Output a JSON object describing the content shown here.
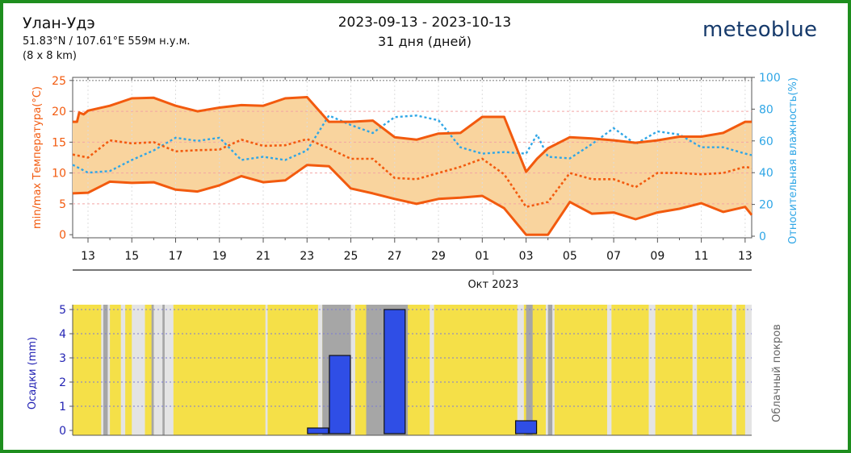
{
  "header": {
    "location": "Улан-Удэ",
    "coords": "51.83°N / 107.61°E   559м н.у.м.",
    "grid": "(8 x 8 km)",
    "date_range": "2023-09-13 - 2023-10-13",
    "days": "31 дня (дней)",
    "brand": "meteoblue"
  },
  "colors": {
    "temperature": "#f25a0e",
    "band": "#f9d49e",
    "humidity": "#2fa6e6",
    "precip": "#2f4ee6",
    "precip_axis": "#2424b4",
    "sun": "#f5e048",
    "cloud_light": "#e4e4e4",
    "cloud_dark": "#a6a6a6",
    "frame": "#1e8e1e"
  },
  "chart_data": [
    {
      "type": "area",
      "ylabel": "min/max Температура(°C)",
      "y2label": "Относительная влажность(%)",
      "xlabel": "Окт 2023",
      "ylim": [
        -0.5,
        25.5
      ],
      "y2lim": [
        -1,
        100
      ],
      "y_ticks": [
        "0",
        "5",
        "10",
        "15",
        "20",
        "25"
      ],
      "y2_ticks": [
        "0",
        "20",
        "40",
        "60",
        "80",
        "100"
      ],
      "x_range": [
        12.3,
        43.3
      ],
      "x_tick_days": [
        13,
        15,
        17,
        19,
        21,
        23,
        25,
        27,
        29,
        31,
        33,
        35,
        37,
        39,
        41,
        43
      ],
      "x_ticks": [
        "13",
        "15",
        "17",
        "19",
        "21",
        "23",
        "25",
        "27",
        "29",
        "01",
        "03",
        "05",
        "07",
        "09",
        "11",
        "13"
      ],
      "grid": true,
      "series": [
        {
          "name": "max",
          "x": [
            12.3,
            12.5,
            12.6,
            12.8,
            13,
            14,
            15,
            16,
            17,
            18,
            19,
            20,
            21,
            22,
            23,
            24,
            25,
            26,
            27,
            28,
            29,
            30,
            31,
            32,
            33,
            33.5,
            34,
            35,
            36,
            37,
            38,
            39,
            40,
            41,
            42,
            43,
            43.3
          ],
          "values": [
            18.3,
            18.3,
            19.8,
            19.5,
            20.1,
            20.9,
            22.1,
            22.2,
            20.9,
            20.0,
            20.6,
            21.0,
            20.9,
            22.1,
            22.3,
            18.3,
            18.3,
            18.5,
            15.8,
            15.4,
            16.4,
            16.5,
            19.1,
            19.1,
            10.2,
            12.3,
            14.0,
            15.8,
            15.6,
            15.3,
            14.9,
            15.3,
            15.9,
            15.9,
            16.5,
            18.3,
            18.3
          ]
        },
        {
          "name": "min",
          "x": [
            12.3,
            13,
            14,
            15,
            16,
            17,
            18,
            19,
            20,
            21,
            22,
            23,
            24,
            25,
            26,
            27,
            28,
            29,
            30,
            31,
            32,
            33,
            34,
            35,
            36,
            37,
            38,
            39,
            40,
            41,
            42,
            43,
            43.3
          ],
          "values": [
            6.7,
            6.8,
            8.6,
            8.4,
            8.5,
            7.3,
            7.0,
            8.0,
            9.5,
            8.5,
            8.8,
            11.3,
            11.1,
            7.5,
            6.7,
            5.8,
            5.0,
            5.8,
            6.0,
            6.3,
            4.3,
            0.0,
            0.0,
            5.3,
            3.4,
            3.6,
            2.5,
            3.6,
            4.2,
            5.1,
            3.7,
            4.5,
            3.2
          ]
        },
        {
          "name": "mean",
          "x": [
            12.3,
            13,
            14,
            15,
            16,
            17,
            18,
            19,
            20,
            21,
            22,
            23,
            24,
            25,
            26,
            27,
            28,
            29,
            30,
            31,
            32,
            33,
            34,
            35,
            36,
            37,
            38,
            39,
            40,
            41,
            42,
            43,
            43.3
          ],
          "values": [
            13.0,
            12.5,
            15.3,
            14.8,
            15.0,
            13.5,
            13.7,
            13.8,
            15.4,
            14.4,
            14.5,
            15.5,
            14.0,
            12.3,
            12.3,
            9.2,
            9.0,
            10.0,
            11.0,
            12.3,
            9.8,
            4.5,
            5.3,
            10.0,
            9.0,
            9.0,
            7.7,
            10.0,
            10.0,
            9.8,
            10.0,
            11.0,
            10.8
          ]
        },
        {
          "name": "humidity",
          "x": [
            12.3,
            13,
            14,
            15,
            16,
            17,
            18,
            19,
            20,
            21,
            22,
            23,
            24,
            25,
            26,
            27,
            28,
            29,
            30,
            31,
            32,
            33,
            33.5,
            34,
            35,
            36,
            37,
            38,
            39,
            40,
            41,
            42,
            43,
            43.3
          ],
          "values": [
            45,
            40,
            41,
            48,
            54,
            62,
            60,
            62,
            48,
            50,
            48,
            54,
            76,
            70,
            65,
            75,
            76,
            73,
            56,
            52,
            53,
            52,
            64,
            50,
            49,
            58,
            68,
            58,
            66,
            64,
            56,
            56,
            52,
            51
          ]
        }
      ]
    },
    {
      "type": "bar",
      "ylabel": "Осадки (mm)",
      "y2label": "Облачный покров",
      "ylim": [
        -0.2,
        5.2
      ],
      "y_ticks": [
        "0",
        "1",
        "2",
        "3",
        "4",
        "5"
      ],
      "x_range": [
        12.3,
        43.3
      ],
      "grid": true,
      "bars": {
        "x": [
          23.5,
          24.5,
          27.0,
          33.0
        ],
        "values": [
          0.1,
          3.1,
          5.0,
          0.4
        ]
      },
      "cloud_light": [
        [
          13.6,
          14.0
        ],
        [
          14.5,
          14.7
        ],
        [
          15.0,
          15.6
        ],
        [
          16.0,
          16.9
        ],
        [
          21.1,
          21.2
        ],
        [
          23.5,
          23.7
        ],
        [
          25.0,
          25.2
        ],
        [
          27.0,
          27.3
        ],
        [
          28.6,
          28.8
        ],
        [
          32.6,
          32.9
        ],
        [
          33.9,
          34.3
        ],
        [
          36.7,
          36.9
        ],
        [
          38.6,
          38.9
        ],
        [
          40.6,
          40.8
        ],
        [
          42.4,
          42.6
        ],
        [
          43.0,
          43.3
        ]
      ],
      "cloud_dark": [
        [
          13.7,
          13.9
        ],
        [
          15.9,
          16.0
        ],
        [
          16.4,
          16.5
        ],
        [
          23.7,
          25.0
        ],
        [
          25.7,
          27.6
        ],
        [
          33.0,
          33.3
        ],
        [
          34.0,
          34.2
        ]
      ]
    }
  ]
}
